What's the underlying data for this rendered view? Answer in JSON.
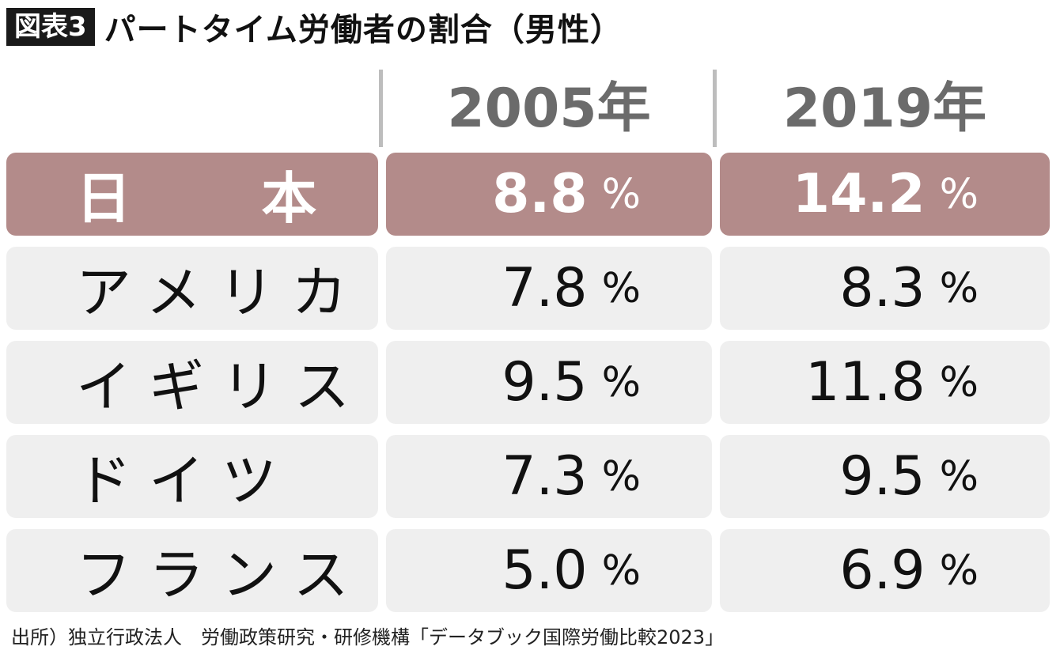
{
  "title": {
    "badge": "図表3",
    "text": "パートタイム労働者の割合（男性）"
  },
  "chart_data": {
    "type": "table",
    "columns": [
      "2005年",
      "2019年"
    ],
    "unit": "%",
    "rows": [
      {
        "country": "日 本",
        "values": [
          "8.8",
          "14.2"
        ],
        "highlight": true
      },
      {
        "country": "アメリカ",
        "values": [
          "7.8",
          "8.3"
        ]
      },
      {
        "country": "イギリス",
        "values": [
          "9.5",
          "11.8"
        ]
      },
      {
        "country": "ドイツ",
        "values": [
          "7.3",
          "9.5"
        ]
      },
      {
        "country": "フランス",
        "values": [
          "5.0",
          "6.9"
        ]
      }
    ],
    "colors": {
      "highlight_row": "#b38b8a",
      "row": "#efefef",
      "header_text": "#6b6b6b"
    }
  },
  "source": "出所）独立行政法人　労働政策研究・研修機構「データブック国際労働比較2023」"
}
